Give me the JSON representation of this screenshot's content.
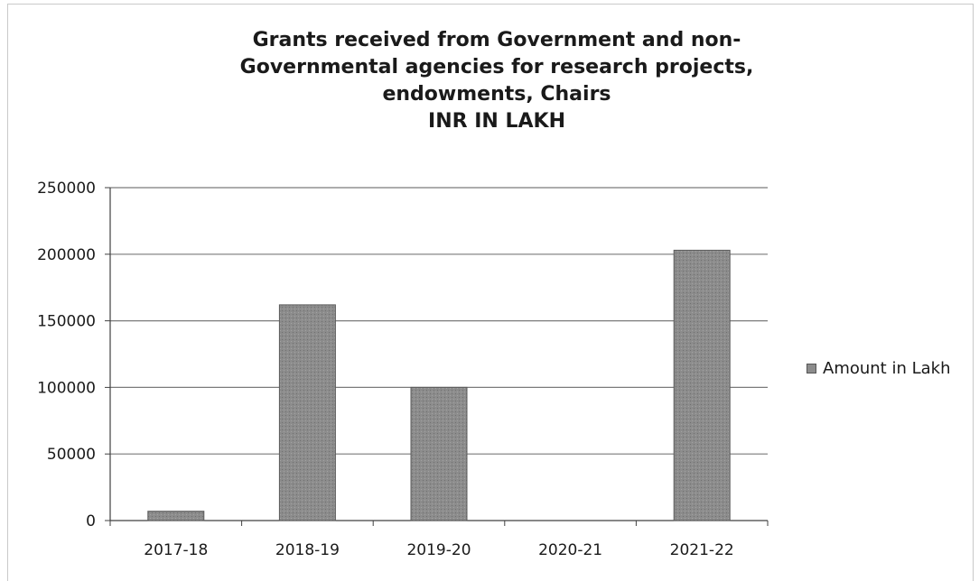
{
  "chart_data": {
    "type": "bar",
    "title_lines": [
      "Grants received from Government and non-",
      "Governmental agencies for research projects,",
      "endowments, Chairs",
      "INR IN LAKH"
    ],
    "categories": [
      "2017-18",
      "2018-19",
      "2019-20",
      "2020-21",
      "2021-22"
    ],
    "series": [
      {
        "name": "Amount in Lakh",
        "values": [
          7000,
          162000,
          100000,
          0,
          203000
        ]
      }
    ],
    "ylim": [
      0,
      250000
    ],
    "yticks": [
      0,
      50000,
      100000,
      150000,
      200000,
      250000
    ],
    "grid": true,
    "legend": "right",
    "colors": {
      "bar": "#8c8c8c",
      "bar_edge": "#5a5a5a",
      "grid": "#7a7a7a",
      "axis": "#404040",
      "text": "#1a1a1a"
    }
  }
}
